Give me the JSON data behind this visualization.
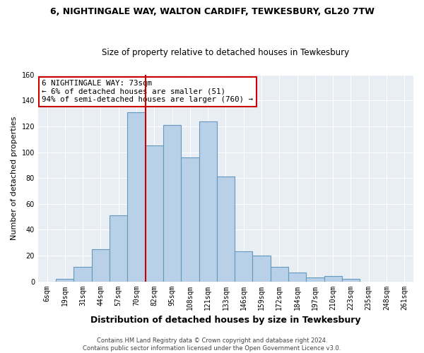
{
  "title": "6, NIGHTINGALE WAY, WALTON CARDIFF, TEWKESBURY, GL20 7TW",
  "subtitle": "Size of property relative to detached houses in Tewkesbury",
  "xlabel": "Distribution of detached houses by size in Tewkesbury",
  "ylabel": "Number of detached properties",
  "footer_line1": "Contains HM Land Registry data © Crown copyright and database right 2024.",
  "footer_line2": "Contains public sector information licensed under the Open Government Licence v3.0.",
  "annotation_line1": "6 NIGHTINGALE WAY: 73sqm",
  "annotation_line2": "← 6% of detached houses are smaller (51)",
  "annotation_line3": "94% of semi-detached houses are larger (760) →",
  "bar_labels": [
    "6sqm",
    "19sqm",
    "31sqm",
    "44sqm",
    "57sqm",
    "70sqm",
    "82sqm",
    "95sqm",
    "108sqm",
    "121sqm",
    "133sqm",
    "146sqm",
    "159sqm",
    "172sqm",
    "184sqm",
    "197sqm",
    "210sqm",
    "223sqm",
    "235sqm",
    "248sqm",
    "261sqm"
  ],
  "bar_values": [
    0,
    2,
    11,
    25,
    51,
    131,
    105,
    121,
    96,
    124,
    81,
    23,
    20,
    11,
    7,
    3,
    4,
    2,
    0,
    0,
    0
  ],
  "bar_color": "#b8d0e8",
  "bar_edge_color": "#6699bb",
  "red_line_index": 5,
  "ylim": [
    0,
    160
  ],
  "yticks": [
    0,
    20,
    40,
    60,
    80,
    100,
    120,
    140,
    160
  ],
  "annotation_box_facecolor": "white",
  "annotation_box_edgecolor": "#cc0000",
  "red_line_color": "#cc0000",
  "background_color": "#ffffff",
  "plot_bg_color": "#e8eef4",
  "grid_color": "#ffffff",
  "title_fontsize": 9,
  "subtitle_fontsize": 8.5,
  "xlabel_fontsize": 9,
  "ylabel_fontsize": 8,
  "tick_fontsize": 7,
  "footer_fontsize": 6,
  "annotation_fontsize": 7.8
}
